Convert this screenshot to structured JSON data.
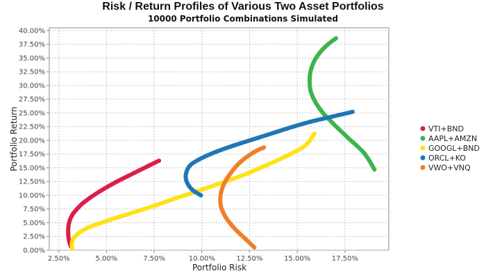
{
  "chart_data": {
    "type": "scatter",
    "title": "Risk / Return Profiles of Various Two Asset Portfolios",
    "subtitle": "10000 Portfolio Combinations Simulated",
    "xlabel": "Portfolio Risk",
    "ylabel": "Portfolio Return",
    "xlim": [
      0.02,
      0.198
    ],
    "ylim": [
      0.0,
      0.405
    ],
    "xticks": [
      0.025,
      0.05,
      0.075,
      0.1,
      0.125,
      0.15,
      0.175
    ],
    "xtick_labels": [
      "2.50%",
      "5.00%",
      "7.50%",
      "10.00%",
      "12.50%",
      "15.00%",
      "17.50%"
    ],
    "yticks": [
      0.0,
      0.025,
      0.05,
      0.075,
      0.1,
      0.125,
      0.15,
      0.175,
      0.2,
      0.225,
      0.25,
      0.275,
      0.3,
      0.325,
      0.35,
      0.375,
      0.4
    ],
    "ytick_labels": [
      "0.00%",
      "2.50%",
      "5.00%",
      "7.50%",
      "10.00%",
      "12.50%",
      "15.00%",
      "17.50%",
      "20.00%",
      "22.50%",
      "25.00%",
      "27.50%",
      "30.00%",
      "32.50%",
      "35.00%",
      "37.50%",
      "40.00%"
    ],
    "grid": true,
    "legend_position": "right",
    "series": [
      {
        "name": "VTI+BND",
        "color": "#dc1f4a",
        "points": [
          [
            0.0313,
            0.007
          ],
          [
            0.0305,
            0.015
          ],
          [
            0.03,
            0.025
          ],
          [
            0.0299,
            0.035
          ],
          [
            0.0301,
            0.045
          ],
          [
            0.0308,
            0.055
          ],
          [
            0.0322,
            0.065
          ],
          [
            0.0345,
            0.075
          ],
          [
            0.0374,
            0.085
          ],
          [
            0.0412,
            0.095
          ],
          [
            0.0455,
            0.105
          ],
          [
            0.0503,
            0.115
          ],
          [
            0.0555,
            0.125
          ],
          [
            0.0612,
            0.135
          ],
          [
            0.067,
            0.145
          ],
          [
            0.0728,
            0.155
          ],
          [
            0.0775,
            0.163
          ]
        ]
      },
      {
        "name": "AAPL+AMZN",
        "color": "#3cb44b",
        "points": [
          [
            0.1703,
            0.386
          ],
          [
            0.1645,
            0.37
          ],
          [
            0.1598,
            0.35
          ],
          [
            0.1573,
            0.33
          ],
          [
            0.1565,
            0.312
          ],
          [
            0.157,
            0.29
          ],
          [
            0.1595,
            0.27
          ],
          [
            0.1635,
            0.25
          ],
          [
            0.169,
            0.23
          ],
          [
            0.1765,
            0.205
          ],
          [
            0.185,
            0.177
          ],
          [
            0.1905,
            0.147
          ]
        ]
      },
      {
        "name": "GOOGL+BND",
        "color": "#ffe119",
        "points": [
          [
            0.032,
            0.003
          ],
          [
            0.0318,
            0.012
          ],
          [
            0.0328,
            0.022
          ],
          [
            0.0358,
            0.032
          ],
          [
            0.041,
            0.042
          ],
          [
            0.049,
            0.052
          ],
          [
            0.058,
            0.062
          ],
          [
            0.067,
            0.072
          ],
          [
            0.076,
            0.082
          ],
          [
            0.085,
            0.093
          ],
          [
            0.0945,
            0.104
          ],
          [
            0.104,
            0.115
          ],
          [
            0.114,
            0.127
          ],
          [
            0.124,
            0.14
          ],
          [
            0.134,
            0.155
          ],
          [
            0.144,
            0.171
          ],
          [
            0.154,
            0.19
          ],
          [
            0.159,
            0.212
          ]
        ]
      },
      {
        "name": "ORCL+KO",
        "color": "#1f77b4",
        "points": [
          [
            0.0995,
            0.1
          ],
          [
            0.095,
            0.11
          ],
          [
            0.092,
            0.125
          ],
          [
            0.0917,
            0.14
          ],
          [
            0.094,
            0.155
          ],
          [
            0.1,
            0.168
          ],
          [
            0.108,
            0.18
          ],
          [
            0.117,
            0.191
          ],
          [
            0.127,
            0.202
          ],
          [
            0.137,
            0.213
          ],
          [
            0.147,
            0.224
          ],
          [
            0.157,
            0.234
          ],
          [
            0.168,
            0.243
          ],
          [
            0.179,
            0.252
          ]
        ]
      },
      {
        "name": "VWO+VNQ",
        "color": "#f07f2a",
        "points": [
          [
            0.1275,
            0.005
          ],
          [
            0.123,
            0.02
          ],
          [
            0.117,
            0.04
          ],
          [
            0.1125,
            0.06
          ],
          [
            0.11,
            0.08
          ],
          [
            0.1098,
            0.1
          ],
          [
            0.1115,
            0.12
          ],
          [
            0.115,
            0.14
          ],
          [
            0.12,
            0.16
          ],
          [
            0.127,
            0.178
          ],
          [
            0.1325,
            0.187
          ]
        ]
      }
    ]
  }
}
